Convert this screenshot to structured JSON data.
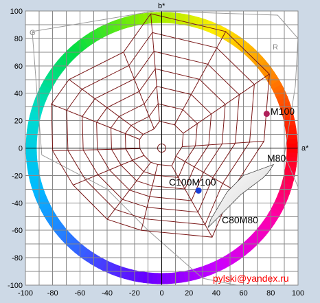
{
  "chart_data": {
    "type": "scatter",
    "xlabel": "a*",
    "ylabel": "b*",
    "xlim": [
      -100,
      100
    ],
    "ylim": [
      -100,
      100
    ],
    "x_ticks": [
      "-100",
      "-80",
      "-60",
      "-40",
      "-20",
      "0",
      "20",
      "40",
      "60",
      "80",
      "100"
    ],
    "y_ticks": [
      "100",
      "80",
      "60",
      "40",
      "20",
      "0",
      "-20",
      "-40",
      "-60",
      "-80",
      "-100"
    ],
    "grid": true,
    "corner_labels": [
      "G",
      "R"
    ],
    "points": [
      {
        "label": "M100",
        "x": 77,
        "y": 25,
        "color": "#b0205a"
      },
      {
        "label": "C100M100",
        "x": 27,
        "y": -31,
        "color": "#1a3fd6"
      }
    ],
    "annotations": [
      "M80",
      "C80M80"
    ],
    "hue_ring_colors": [
      "#ff0000",
      "#ff8800",
      "#ffee00",
      "#88ee00",
      "#00dd44",
      "#00ddcc",
      "#00bbff",
      "#3366ff",
      "#6600ff",
      "#cc00ff",
      "#ff00aa"
    ],
    "watermark": "pylski@yandex.ru",
    "watermark_color": "#ff0000",
    "web_color": "#7a1818"
  }
}
